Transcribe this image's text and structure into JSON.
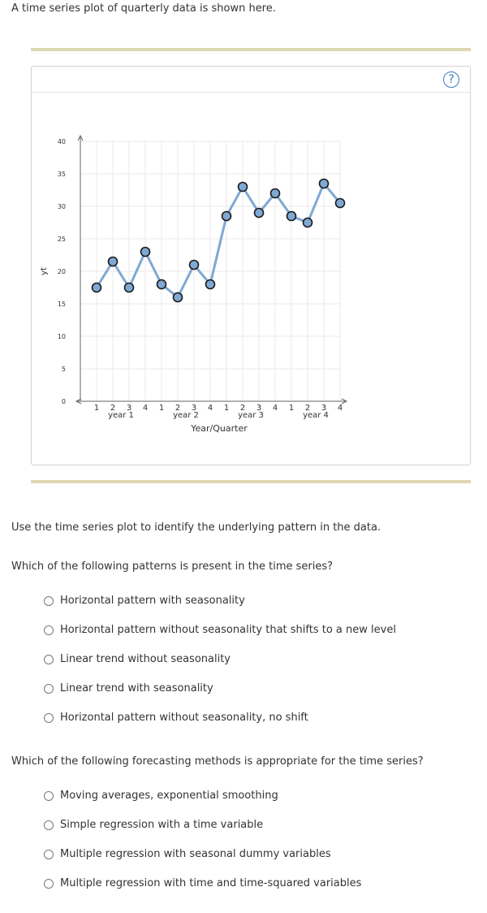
{
  "intro_text": "A time series plot of quarterly data is shown here.",
  "instruction": "Use the time series plot to identify the underlying pattern in the data.",
  "question1": {
    "text": "Which of the following patterns is present in the time series?",
    "options": [
      "Horizontal pattern with seasonality",
      "Horizontal pattern without seasonality that shifts to a new level",
      "Linear trend without seasonality",
      "Linear trend with seasonality",
      "Horizontal pattern without seasonality, no shift"
    ]
  },
  "question2": {
    "text": "Which of the following forecasting methods is appropriate for the time series?",
    "options": [
      "Moving averages, exponential smoothing",
      "Simple regression with a time variable",
      "Multiple regression with seasonal dummy variables",
      "Multiple regression with time and time-squared variables"
    ]
  },
  "help_icon_glyph": "?",
  "colors": {
    "line": "#7fa8d3",
    "marker_fill": "#7fa8d3",
    "marker_stroke": "#1a1a1a",
    "grid": "#e8e8e8",
    "rule": "#ddd6b3",
    "help": "#3a7bbf"
  },
  "chart_data": {
    "type": "line",
    "title": "",
    "xlabel": "Year/Quarter",
    "ylabel": "yt",
    "ylim": [
      0,
      40
    ],
    "yticks": [
      0,
      5,
      10,
      15,
      20,
      25,
      30,
      35,
      40
    ],
    "quarter_labels": [
      "1",
      "2",
      "3",
      "4"
    ],
    "year_labels": [
      "year 1",
      "year 2",
      "year 3",
      "year 4"
    ],
    "x": [
      1,
      2,
      3,
      4,
      5,
      6,
      7,
      8,
      9,
      10,
      11,
      12,
      13,
      14,
      15,
      16
    ],
    "values": [
      17.5,
      21.5,
      17.5,
      23,
      18,
      16,
      21,
      18,
      28.5,
      33,
      29,
      32,
      28.5,
      27.5,
      33.5,
      30.5
    ],
    "grid": true,
    "markers": "circle"
  }
}
